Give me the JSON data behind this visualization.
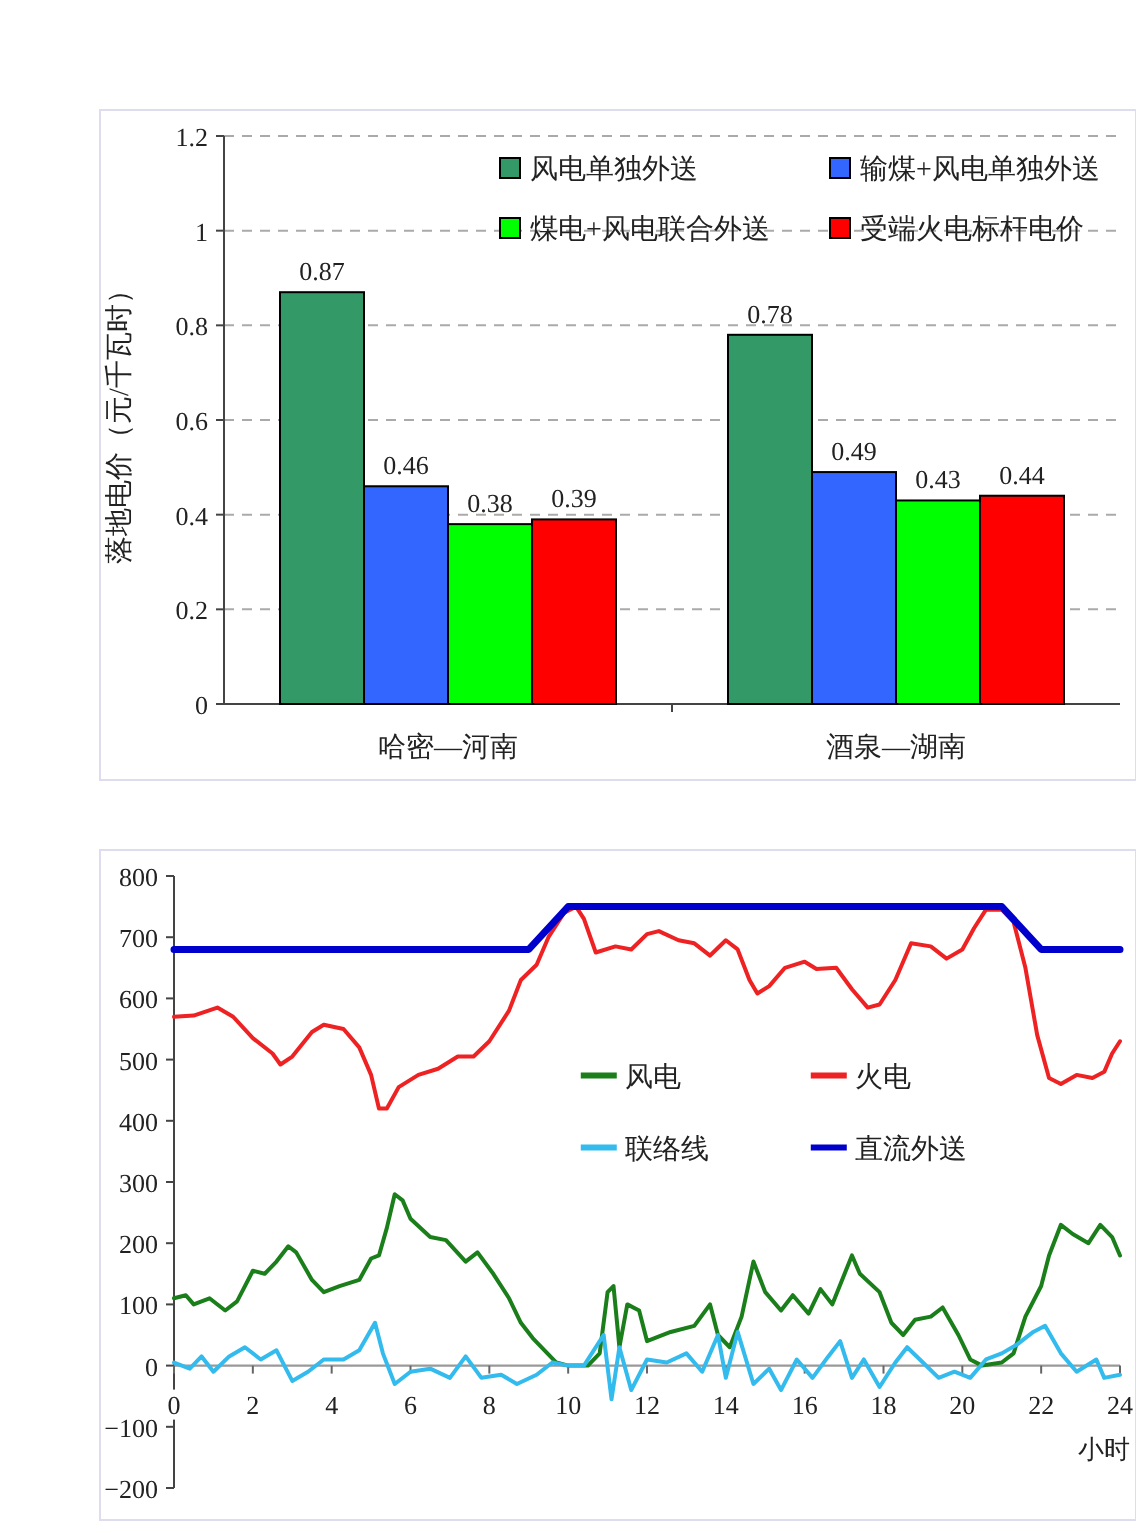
{
  "chart_data": [
    {
      "type": "bar",
      "ylabel": "落地电价（元/千瓦时）",
      "categories": [
        "哈密—河南",
        "酒泉—湖南"
      ],
      "series": [
        {
          "name": "风电单独外送",
          "color": "#339966",
          "values": [
            0.87,
            0.78
          ]
        },
        {
          "name": "输煤+风电单独外送",
          "color": "#3366ff",
          "values": [
            0.46,
            0.49
          ]
        },
        {
          "name": "煤电+风电联合外送",
          "color": "#00ff00",
          "values": [
            0.38,
            0.43
          ]
        },
        {
          "name": "受端火电标杆电价",
          "color": "#ff0000",
          "values": [
            0.39,
            0.44
          ]
        }
      ],
      "ylim": [
        0,
        1.2
      ],
      "yticks": [
        0,
        0.2,
        0.4,
        0.6,
        0.8,
        1,
        1.2
      ],
      "grid": "y",
      "legend": "top right",
      "data_labels": true
    },
    {
      "type": "line",
      "xlabel": "小时",
      "xlim": [
        0,
        24
      ],
      "xticks": [
        0,
        2,
        4,
        6,
        8,
        10,
        12,
        14,
        16,
        18,
        20,
        22,
        24
      ],
      "ylim": [
        -200,
        800
      ],
      "yticks": [
        -200,
        -100,
        0,
        100,
        200,
        300,
        400,
        500,
        600,
        700,
        800
      ],
      "grid": false,
      "legend": "right",
      "series": [
        {
          "name": "风电",
          "color": "#1a7f1a",
          "x": [
            0,
            0.3,
            0.5,
            0.9,
            1.3,
            1.6,
            2,
            2.3,
            2.6,
            2.9,
            3.1,
            3.5,
            3.8,
            4.2,
            4.7,
            5.0,
            5.2,
            5.4,
            5.6,
            5.8,
            6.0,
            6.5,
            6.9,
            7.4,
            7.7,
            8.1,
            8.5,
            8.8,
            9.1,
            9.4,
            9.7,
            10,
            10.5,
            10.8,
            11.0,
            11.15,
            11.3,
            11.5,
            11.8,
            12,
            12.6,
            13.2,
            13.6,
            13.8,
            14.1,
            14.4,
            14.7,
            15,
            15.4,
            15.7,
            16.1,
            16.4,
            16.7,
            17.2,
            17.4,
            17.9,
            18.2,
            18.5,
            18.8,
            19.2,
            19.5,
            19.9,
            20.2,
            20.5,
            21,
            21.3,
            21.6,
            22,
            22.2,
            22.5,
            22.8,
            23.2,
            23.5,
            23.8,
            24
          ],
          "values": [
            110,
            115,
            100,
            110,
            90,
            105,
            155,
            150,
            170,
            195,
            185,
            140,
            120,
            130,
            140,
            175,
            180,
            225,
            280,
            270,
            240,
            210,
            205,
            170,
            185,
            150,
            110,
            70,
            45,
            25,
            5,
            0,
            0,
            20,
            120,
            130,
            30,
            100,
            90,
            40,
            55,
            65,
            100,
            50,
            30,
            80,
            170,
            120,
            90,
            115,
            85,
            125,
            100,
            180,
            150,
            120,
            70,
            50,
            75,
            80,
            95,
            50,
            10,
            0,
            5,
            20,
            80,
            130,
            180,
            230,
            215,
            200,
            230,
            210,
            180
          ]
        },
        {
          "name": "火电",
          "color": "#ee2222",
          "x": [
            0,
            0.5,
            1.1,
            1.5,
            2,
            2.5,
            2.7,
            3,
            3.5,
            3.8,
            4.3,
            4.7,
            5.0,
            5.2,
            5.4,
            5.7,
            6.2,
            6.7,
            7.2,
            7.6,
            8,
            8.5,
            8.8,
            9.2,
            9.5,
            9.9,
            10.2,
            10.4,
            10.7,
            11.2,
            11.6,
            12,
            12.3,
            12.8,
            13.2,
            13.6,
            14,
            14.3,
            14.6,
            14.8,
            15.1,
            15.5,
            16,
            16.3,
            16.8,
            17.2,
            17.6,
            17.9,
            18.3,
            18.7,
            19.2,
            19.6,
            20,
            20.3,
            20.6,
            21,
            21.3,
            21.6,
            21.9,
            22.2,
            22.5,
            22.9,
            23.3,
            23.6,
            23.8,
            24
          ],
          "values": [
            570,
            572,
            585,
            570,
            535,
            510,
            492,
            505,
            545,
            557,
            550,
            520,
            475,
            420,
            420,
            455,
            475,
            485,
            505,
            505,
            530,
            580,
            630,
            655,
            700,
            740,
            750,
            730,
            675,
            685,
            680,
            705,
            710,
            695,
            690,
            670,
            695,
            680,
            630,
            608,
            620,
            650,
            660,
            648,
            650,
            615,
            585,
            590,
            630,
            690,
            685,
            665,
            680,
            715,
            745,
            745,
            725,
            650,
            540,
            470,
            460,
            475,
            470,
            480,
            510,
            530
          ]
        },
        {
          "name": "联络线",
          "color": "#33bbee",
          "x": [
            0,
            0.4,
            0.7,
            1,
            1.4,
            1.8,
            2.2,
            2.6,
            3,
            3.4,
            3.8,
            4.3,
            4.7,
            5.1,
            5.3,
            5.6,
            6,
            6.5,
            7,
            7.4,
            7.8,
            8.3,
            8.7,
            9.2,
            9.6,
            10,
            10.4,
            10.9,
            11.1,
            11.3,
            11.6,
            12,
            12.5,
            13,
            13.4,
            13.8,
            14,
            14.3,
            14.7,
            15.1,
            15.4,
            15.8,
            16.2,
            16.6,
            16.9,
            17.2,
            17.5,
            17.9,
            18.3,
            18.6,
            19,
            19.4,
            19.8,
            20.2,
            20.6,
            21,
            21.4,
            21.8,
            22.1,
            22.5,
            22.9,
            23.4,
            23.6,
            24
          ],
          "values": [
            5,
            -5,
            15,
            -10,
            15,
            30,
            10,
            25,
            -25,
            -10,
            10,
            10,
            25,
            70,
            20,
            -30,
            -10,
            -5,
            -20,
            15,
            -20,
            -15,
            -30,
            -15,
            5,
            0,
            0,
            50,
            -55,
            30,
            -40,
            10,
            5,
            20,
            -10,
            50,
            -20,
            55,
            -30,
            -5,
            -40,
            10,
            -20,
            15,
            40,
            -20,
            10,
            -35,
            5,
            30,
            5,
            -20,
            -10,
            -20,
            10,
            20,
            35,
            55,
            65,
            20,
            -10,
            10,
            -20,
            -15
          ]
        },
        {
          "name": "直流外送",
          "color": "#0000cc",
          "x": [
            0,
            9.0,
            10.0,
            21.0,
            22.0,
            24
          ],
          "values": [
            680,
            680,
            750,
            750,
            680,
            680
          ]
        }
      ]
    }
  ]
}
